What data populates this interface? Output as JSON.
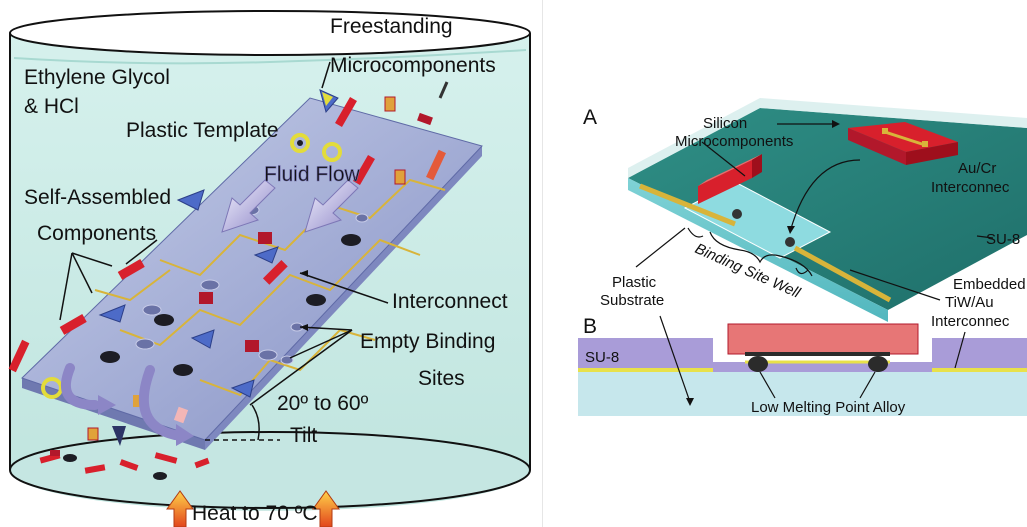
{
  "left_panel": {
    "labels": {
      "freestanding_1": "Freestanding",
      "freestanding_2": "Microcomponents",
      "solvent_1": "Ethylene Glycol",
      "solvent_2": "& HCl",
      "plastic_template": "Plastic Template",
      "fluid_flow": "Fluid Flow",
      "self_assembled_1": "Self-Assembled",
      "self_assembled_2": "Components",
      "interconnect": "Interconnect",
      "empty_binding_1": "Empty Binding",
      "empty_binding_2": "Sites",
      "tilt_1": "20º to 60º",
      "tilt_2": "Tilt",
      "heat": "Heat to 70 ºC"
    }
  },
  "right_panel": {
    "panel_a": {
      "letter": "A",
      "silicon_1": "Silicon",
      "silicon_2": "Microcomponents",
      "aucr_1": "Au/Cr",
      "aucr_2": "Interconnec",
      "su8": "SU-8",
      "binding_site_well": "Binding Site Well",
      "plastic_1": "Plastic",
      "plastic_2": "Substrate",
      "embedded_1": "Embedded",
      "embedded_2": "TiW/Au",
      "embedded_3": "Interconnec"
    },
    "panel_b": {
      "letter": "B",
      "su8": "SU-8",
      "alloy": "Low Melting Point Alloy"
    }
  },
  "colors": {
    "fluid": "#c9ece6",
    "template_top": "#a9b3d8",
    "component_red": "#d8202c",
    "gold_trace": "#d8b43a",
    "substrate_cyan": "#bfe6ea",
    "su8_purple": "#a99cd8"
  }
}
